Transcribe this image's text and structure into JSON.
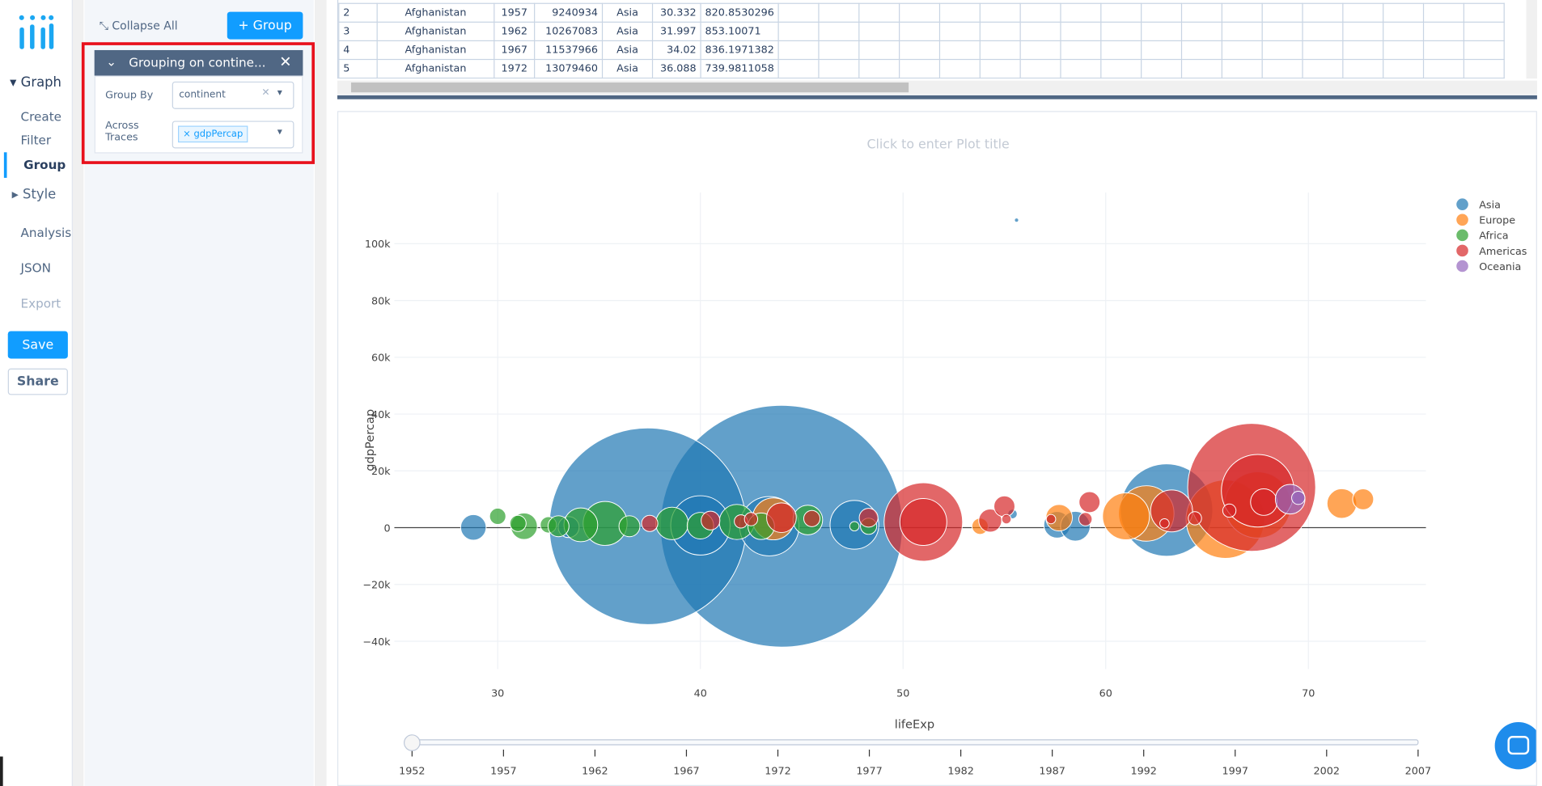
{
  "nav": {
    "graph": "Graph",
    "items": [
      "Create",
      "Filter",
      "Group"
    ],
    "style": "Style",
    "analysis": "Analysis",
    "json": "JSON",
    "export": "Export",
    "save": "Save",
    "share": "Share"
  },
  "panel": {
    "collapse_all": "Collapse All",
    "add_group": "+ Group",
    "grouping": {
      "title": "Grouping on contine...",
      "group_by_label": "Group By",
      "group_by_value": "continent",
      "across_label": "Across Traces",
      "across_chip": "gdpPercap"
    }
  },
  "table": {
    "rows": [
      [
        2,
        "Afghanistan",
        1957,
        9240934,
        "Asia",
        30.332,
        820.8530296
      ],
      [
        3,
        "Afghanistan",
        1962,
        10267083,
        "Asia",
        31.997,
        853.10071
      ],
      [
        4,
        "Afghanistan",
        1967,
        11537966,
        "Asia",
        34.02,
        836.1971382
      ],
      [
        5,
        "Afghanistan",
        1972,
        13079460,
        "Asia",
        36.088,
        739.9811058
      ]
    ]
  },
  "chart_data": {
    "type": "bubble",
    "title": "Click to enter Plot title",
    "x_label": "lifeExp",
    "y_label": "gdpPercap",
    "xlim": [
      24.9,
      75.8
    ],
    "ylim": [
      -49800,
      118000
    ],
    "xticks": [
      30,
      40,
      50,
      60,
      70
    ],
    "yticks": [
      {
        "value": -40000,
        "label": "−40k"
      },
      {
        "value": -20000,
        "label": "−20k"
      },
      0,
      {
        "value": 20000,
        "label": "20k"
      },
      {
        "value": 40000,
        "label": "40k"
      },
      {
        "value": 60000,
        "label": "60k"
      },
      {
        "value": 80000,
        "label": "80k"
      },
      {
        "value": 100000,
        "label": "100k"
      }
    ],
    "grid": true,
    "legend": "top-right",
    "series": [
      {
        "name": "Asia",
        "color": "#1f77b4",
        "x": [
          44.0,
          37.4,
          63.0,
          43.4,
          47.6,
          40.0,
          28.8,
          57.6,
          58.5,
          33.5,
          55.4,
          55.6
        ],
        "values": [
          500,
          500,
          6200,
          500,
          1000,
          800,
          100,
          1000,
          500,
          200,
          4800,
          108300
        ],
        "sizes": [
          665,
          440,
          97,
          40,
          27,
          40,
          7.4,
          8,
          10,
          5,
          1,
          0.2
        ]
      },
      {
        "name": "Europe",
        "color": "#ff7f0e",
        "x": [
          65.9,
          67.5,
          62.0,
          61.0,
          43.6,
          57.7,
          71.65,
          72.7,
          53.8
        ],
        "values": [
          3000,
          8000,
          5000,
          4000,
          3100,
          3500,
          8500,
          10000,
          500
        ],
        "sizes": [
          70,
          50,
          35,
          25,
          20,
          8,
          10,
          5,
          3
        ]
      },
      {
        "name": "Africa",
        "color": "#2ca02c",
        "x": [
          35.3,
          34.1,
          41.8,
          38.6,
          45.3,
          31.3,
          40.0,
          43.0,
          30.0,
          31.0,
          32.5,
          33.0,
          36.5,
          47.6,
          48.3
        ],
        "values": [
          1500,
          1000,
          2000,
          1500,
          2700,
          500,
          700,
          500,
          4000,
          1500,
          1000,
          500,
          500,
          500,
          500
        ],
        "sizes": [
          22,
          13,
          14,
          12,
          10,
          8,
          8,
          8,
          3,
          3,
          3,
          5,
          5,
          1,
          3
        ]
      },
      {
        "name": "Americas",
        "color": "#d62728",
        "x": [
          67.2,
          51.0,
          67.5,
          51.0,
          63.25,
          44.0,
          67.8,
          54.3,
          55.0,
          59.2,
          37.5,
          40.5,
          48.3,
          45.5,
          42.0,
          42.5,
          59.0,
          64.4,
          66.1,
          55.1,
          57.3,
          62.9
        ],
        "values": [
          14200,
          2000,
          13000,
          2000,
          5900,
          3500,
          9000,
          2500,
          7500,
          9000,
          1500,
          2500,
          3500,
          3200,
          2200,
          3000,
          3000,
          3300,
          6000,
          3000,
          3000,
          1500
        ],
        "sizes": [
          186,
          70,
          60,
          25,
          20,
          10,
          8,
          6,
          5,
          5,
          3,
          4,
          4,
          3,
          2,
          2,
          2,
          2,
          2,
          1,
          1,
          1
        ]
      },
      {
        "name": "Oceania",
        "color": "#9467bd",
        "x": [
          69.1,
          69.5
        ],
        "values": [
          10030,
          10500
        ],
        "sizes": [
          10,
          2
        ]
      }
    ],
    "slider": {
      "steps": [
        1952,
        1957,
        1962,
        1967,
        1972,
        1977,
        1982,
        1987,
        1992,
        1997,
        2002,
        2007
      ]
    }
  }
}
